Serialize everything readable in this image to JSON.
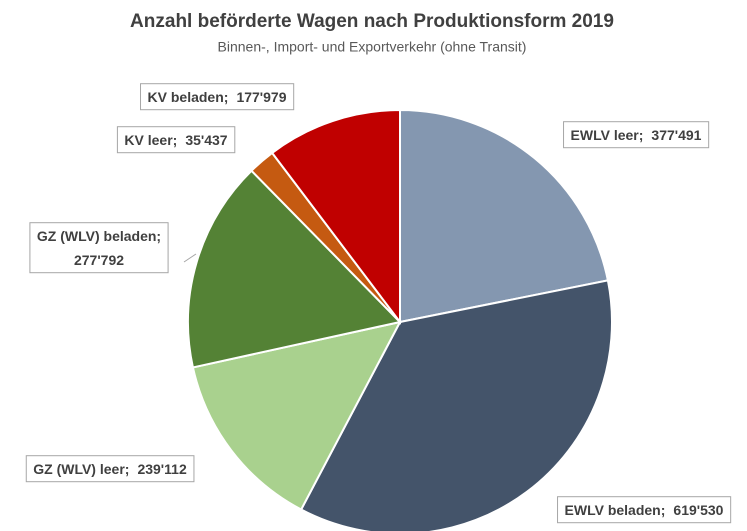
{
  "chart_data": {
    "type": "pie",
    "title": "Anzahl beförderte Wagen nach Produktionsform 2019",
    "subtitle": "Binnen-, Import- und Exportverkehr (ohne Transit)",
    "categories": [
      "EWLV leer",
      "EWLV beladen",
      "GZ (WLV) leer",
      "GZ (WLV) beladen",
      "KV leer",
      "KV beladen"
    ],
    "values": [
      377491,
      619530,
      239112,
      277792,
      35437,
      177979
    ],
    "value_labels": [
      "377'491",
      "619'530",
      "239'112",
      "277'792",
      "35'437",
      "177'979"
    ],
    "label_separator": ";",
    "colors": [
      "#8497b0",
      "#44546a",
      "#a9d18e",
      "#548235",
      "#c55a11",
      "#c00000"
    ]
  }
}
